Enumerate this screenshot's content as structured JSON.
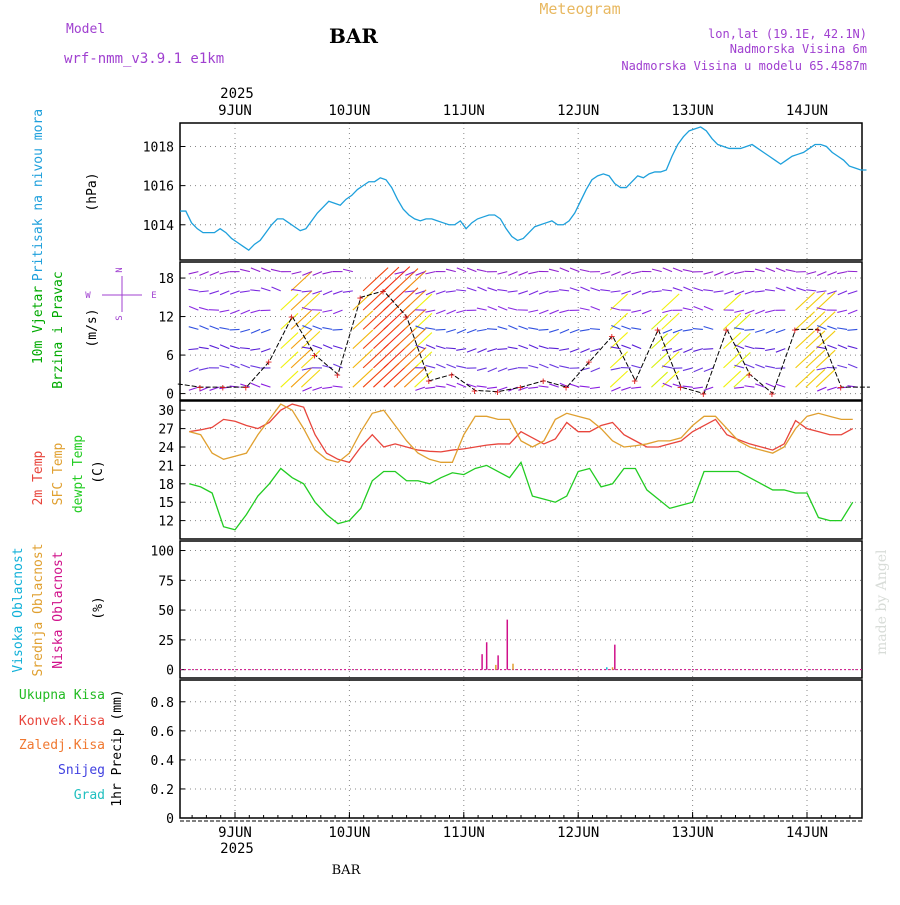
{
  "header": {
    "model_label": "Model",
    "model_name": "wrf-nmm_v3.9.1 e1km",
    "station": "BAR",
    "product": "Meteogram",
    "lonlat": "lon,lat (19.1E, 42.1N)",
    "elevation": "Nadmorska Visina 6m",
    "model_elevation": "Nadmorska Visina u modelu 65.4587m",
    "footer_station": "BAR",
    "watermark": "made by Angel"
  },
  "colors": {
    "pressure": "#1ea0dc",
    "temp2m": "#e8453c",
    "sfc_temp": "#e0a030",
    "dewpt": "#22cc22",
    "cloud_high": "#10b0d8",
    "cloud_mid": "#e0a030",
    "cloud_low": "#d0108a",
    "wind_label": "#00aa00",
    "purple": "#a040d0"
  },
  "time_axis": {
    "year": "2025",
    "days": [
      "9JUN",
      "10JUN",
      "11JUN",
      "12JUN",
      "13JUN",
      "14JUN"
    ]
  },
  "chart_data": [
    {
      "type": "line",
      "id": "pressure",
      "ylabel": [
        "Pritisak na nivou mora",
        "(hPa)"
      ],
      "ylim": [
        1012.2,
        1019.2
      ],
      "yticks": [
        1014,
        1016,
        1018
      ],
      "series": [
        {
          "x": [
            0,
            0.05,
            0.1,
            0.15,
            0.2,
            0.25,
            0.3,
            0.35,
            0.4,
            0.45,
            0.5,
            0.55,
            0.6,
            0.65,
            0.7,
            0.75,
            0.8,
            0.85,
            0.9,
            0.95,
            1.0,
            1.05,
            1.1,
            1.15,
            1.2,
            1.25,
            1.3,
            1.35,
            1.4,
            1.45,
            1.5,
            1.55,
            1.6,
            1.65,
            1.7,
            1.75,
            1.8,
            1.85,
            1.9,
            1.95,
            2.0,
            2.05,
            2.1,
            2.15,
            2.2,
            2.25,
            2.3,
            2.35,
            2.4,
            2.45,
            2.5,
            2.55,
            2.6,
            2.65,
            2.7,
            2.75,
            2.8,
            2.85,
            2.9,
            2.95,
            3.0,
            3.05,
            3.1,
            3.15,
            3.2,
            3.25,
            3.3,
            3.35,
            3.4,
            3.45,
            3.5,
            3.55,
            3.6,
            3.65,
            3.7,
            3.75,
            3.8,
            3.85,
            3.9,
            3.95,
            4.0,
            4.05,
            4.1,
            4.15,
            4.2,
            4.25,
            4.3,
            4.35,
            4.4,
            4.45,
            4.5,
            4.55,
            4.6,
            4.65,
            4.7,
            4.75,
            4.8,
            4.85,
            4.9,
            4.95,
            5.0,
            5.05,
            5.1,
            5.15,
            5.2,
            5.25,
            5.3,
            5.35,
            5.4,
            5.45,
            5.5,
            5.55,
            5.6,
            5.65,
            5.7,
            5.75,
            5.8,
            5.85,
            5.9,
            5.95,
            6.0
          ],
          "values": [
            1014.7,
            1014.7,
            1014.1,
            1013.8,
            1013.6,
            1013.6,
            1013.6,
            1013.8,
            1013.6,
            1013.3,
            1013.1,
            1012.9,
            1012.7,
            1013.0,
            1013.2,
            1013.6,
            1014.0,
            1014.3,
            1014.3,
            1014.1,
            1013.9,
            1013.7,
            1013.8,
            1014.2,
            1014.6,
            1014.9,
            1015.2,
            1015.1,
            1015.0,
            1015.3,
            1015.5,
            1015.8,
            1016.0,
            1016.2,
            1016.2,
            1016.4,
            1016.3,
            1015.9,
            1015.3,
            1014.8,
            1014.5,
            1014.3,
            1014.2,
            1014.3,
            1014.3,
            1014.2,
            1014.1,
            1014.0,
            1014.0,
            1014.2,
            1013.8,
            1014.1,
            1014.3,
            1014.4,
            1014.5,
            1014.5,
            1014.3,
            1013.8,
            1013.4,
            1013.2,
            1013.3,
            1013.6,
            1013.9,
            1014.0,
            1014.1,
            1014.2,
            1014.0,
            1014.0,
            1014.2,
            1014.6,
            1015.2,
            1015.8,
            1016.3,
            1016.5,
            1016.6,
            1016.5,
            1016.1,
            1015.9,
            1015.9,
            1016.2,
            1016.5,
            1016.4,
            1016.6,
            1016.7,
            1016.7,
            1016.8,
            1017.5,
            1018.1,
            1018.5,
            1018.8,
            1018.9,
            1019.0,
            1018.8,
            1018.4,
            1018.1,
            1018.0,
            1017.9,
            1017.9,
            1017.9,
            1018.0,
            1018.1,
            1017.9,
            1017.7,
            1017.5,
            1017.3,
            1017.1,
            1017.3,
            1017.5,
            1017.6,
            1017.7,
            1017.9,
            1018.1,
            1018.1,
            1018.0,
            1017.7,
            1017.5,
            1017.3,
            1017.0,
            1016.9,
            1016.8,
            1016.8
          ]
        }
      ]
    },
    {
      "type": "line",
      "id": "wind",
      "ylabel": [
        "10m Vjetar",
        "Brzina i Pravac",
        "(m/s)"
      ],
      "ylim": [
        -1,
        20.5
      ],
      "yticks": [
        0,
        6,
        12,
        18
      ],
      "legend": {
        "n": "N",
        "s": "S",
        "w": "W",
        "e": "E"
      },
      "series": [
        {
          "x": [
            0,
            0.2,
            0.4,
            0.6,
            0.8,
            1.0,
            1.2,
            1.4,
            1.6,
            1.8,
            2.0,
            2.2,
            2.4,
            2.6,
            2.8,
            3.0,
            3.2,
            3.4,
            3.6,
            3.8,
            4.0,
            4.2,
            4.4,
            4.6,
            4.8,
            5.0,
            5.2,
            5.4,
            5.6,
            5.8,
            6.0
          ],
          "values": [
            1.5,
            1,
            1,
            1,
            5,
            12,
            6,
            3,
            15,
            16,
            12,
            2,
            3,
            0.5,
            0.3,
            1,
            2,
            1,
            5,
            9,
            2,
            10,
            1,
            0,
            10,
            3,
            0,
            10,
            10,
            1,
            1
          ]
        }
      ]
    },
    {
      "type": "line",
      "id": "temperature",
      "ylabel": [
        "2m Temp",
        "SFC Temp",
        "dewpt Temp",
        "(C)"
      ],
      "ylim": [
        9,
        31.5
      ],
      "yticks": [
        12,
        15,
        18,
        21,
        24,
        27,
        30
      ],
      "series": [
        {
          "name": "2m Temp",
          "x": [
            0,
            0.1,
            0.2,
            0.3,
            0.4,
            0.5,
            0.6,
            0.7,
            0.8,
            0.9,
            1.0,
            1.1,
            1.2,
            1.3,
            1.4,
            1.5,
            1.6,
            1.7,
            1.8,
            1.9,
            2.0,
            2.1,
            2.2,
            2.3,
            2.4,
            2.5,
            2.6,
            2.7,
            2.8,
            2.9,
            3.0,
            3.1,
            3.2,
            3.3,
            3.4,
            3.5,
            3.6,
            3.7,
            3.8,
            3.9,
            4.0,
            4.1,
            4.2,
            4.3,
            4.4,
            4.5,
            4.6,
            4.7,
            4.8,
            4.9,
            5.0,
            5.1,
            5.2,
            5.3,
            5.4,
            5.5,
            5.6,
            5.7,
            5.8,
            5.9,
            6.0
          ],
          "values": [
            27.5,
            26.5,
            26.8,
            27.2,
            28.5,
            28.2,
            27.5,
            27,
            28,
            30,
            31,
            30.5,
            26,
            23,
            22,
            21.5,
            24,
            26,
            24,
            24.5,
            24,
            23.5,
            23.3,
            23.2,
            23.5,
            23.7,
            24,
            24.3,
            24.5,
            24.5,
            26.5,
            25.5,
            24.5,
            25.3,
            28,
            26.5,
            26.5,
            27.5,
            28,
            26,
            25,
            24,
            24,
            24.5,
            25,
            26.5,
            27.5,
            28.5,
            26,
            25.2,
            24.5,
            24,
            23.5,
            24.5,
            28.3,
            27,
            26.5,
            26,
            26,
            27,
            26
          ]
        },
        {
          "name": "SFC Temp",
          "x": [
            0,
            0.1,
            0.2,
            0.3,
            0.4,
            0.5,
            0.6,
            0.7,
            0.8,
            0.9,
            1.0,
            1.1,
            1.2,
            1.3,
            1.4,
            1.5,
            1.6,
            1.7,
            1.8,
            1.9,
            2.0,
            2.1,
            2.2,
            2.3,
            2.4,
            2.5,
            2.6,
            2.7,
            2.8,
            2.9,
            3.0,
            3.1,
            3.2,
            3.3,
            3.4,
            3.5,
            3.6,
            3.7,
            3.8,
            3.9,
            4.0,
            4.1,
            4.2,
            4.3,
            4.4,
            4.5,
            4.6,
            4.7,
            4.8,
            4.9,
            5.0,
            5.1,
            5.2,
            5.3,
            5.4,
            5.5,
            5.6,
            5.7,
            5.8,
            5.9,
            6.0
          ],
          "values": [
            28,
            26.5,
            26,
            23,
            22,
            22.5,
            23,
            26,
            28.5,
            31,
            30,
            27,
            23.5,
            22,
            21.5,
            23,
            26.5,
            29.5,
            30,
            27.5,
            25,
            23,
            22,
            21.5,
            21.5,
            26,
            29,
            29,
            28.5,
            28.5,
            25,
            24,
            25,
            28.5,
            29.5,
            29,
            28.5,
            27,
            25,
            24,
            24.2,
            24.5,
            25,
            25,
            25.5,
            27.5,
            29,
            29,
            27,
            25,
            24,
            23.5,
            23,
            24,
            27,
            29,
            29.5,
            29,
            28.5,
            28.5,
            29.5
          ]
        },
        {
          "name": "dewpt Temp",
          "x": [
            0,
            0.1,
            0.2,
            0.3,
            0.4,
            0.5,
            0.6,
            0.7,
            0.8,
            0.9,
            1.0,
            1.1,
            1.2,
            1.3,
            1.4,
            1.5,
            1.6,
            1.7,
            1.8,
            1.9,
            2.0,
            2.1,
            2.2,
            2.3,
            2.4,
            2.5,
            2.6,
            2.7,
            2.8,
            2.9,
            3.0,
            3.1,
            3.2,
            3.3,
            3.4,
            3.5,
            3.6,
            3.7,
            3.8,
            3.9,
            4.0,
            4.1,
            4.2,
            4.3,
            4.4,
            4.5,
            4.6,
            4.7,
            4.8,
            4.9,
            5.0,
            5.1,
            5.2,
            5.3,
            5.4,
            5.5,
            5.6,
            5.7,
            5.8,
            5.9,
            6.0
          ],
          "values": [
            22,
            18,
            17.5,
            16.5,
            11,
            10.5,
            13,
            16,
            18,
            20.5,
            19,
            18,
            15,
            13,
            11.5,
            12,
            14,
            18.5,
            20,
            20,
            18.5,
            18.5,
            18,
            19,
            19.8,
            19.5,
            20.5,
            21,
            20,
            19,
            21.5,
            16,
            15.5,
            15,
            16,
            20,
            20.5,
            17.5,
            18,
            20.5,
            20.5,
            17,
            15.5,
            14,
            14.5,
            15,
            20,
            20,
            20,
            20,
            19,
            18,
            17,
            17,
            16.5,
            16.5,
            12.5,
            12,
            12,
            15,
            16
          ]
        }
      ]
    },
    {
      "type": "bar",
      "id": "cloud",
      "ylabel": [
        "Visoka Oblacnost",
        "Srednja Oblacnost",
        "Niska Oblacnost",
        "(%)"
      ],
      "ylim": [
        -7,
        108
      ],
      "yticks": [
        0,
        25,
        50,
        75,
        100
      ],
      "series": [
        {
          "name": "Visoka Oblacnost",
          "x": [
            2.7,
            3.75
          ],
          "values": [
            3,
            2
          ]
        },
        {
          "name": "Srednja Oblacnost",
          "x": [
            2.78,
            2.93,
            3.8
          ],
          "values": [
            4,
            5,
            2
          ]
        },
        {
          "name": "Niska Oblacnost",
          "x": [
            2.66,
            2.7,
            2.8,
            2.88,
            3.82
          ],
          "values": [
            13,
            23,
            12,
            42,
            21
          ]
        }
      ]
    },
    {
      "type": "bar",
      "id": "precip",
      "ylabel": [
        "1hr Precip (mm)"
      ],
      "legend": [
        "Ukupna Kisa",
        "Konvek.Kisa",
        "Zaledj.Kisa",
        "Snijeg",
        "Grad"
      ],
      "ylim": [
        0,
        0.95
      ],
      "yticks": [
        0,
        0.2,
        0.4,
        0.6,
        0.8
      ],
      "ytick_labels": [
        "0",
        "0.2",
        "0.4",
        "0.6",
        "0.8"
      ],
      "series": []
    }
  ]
}
